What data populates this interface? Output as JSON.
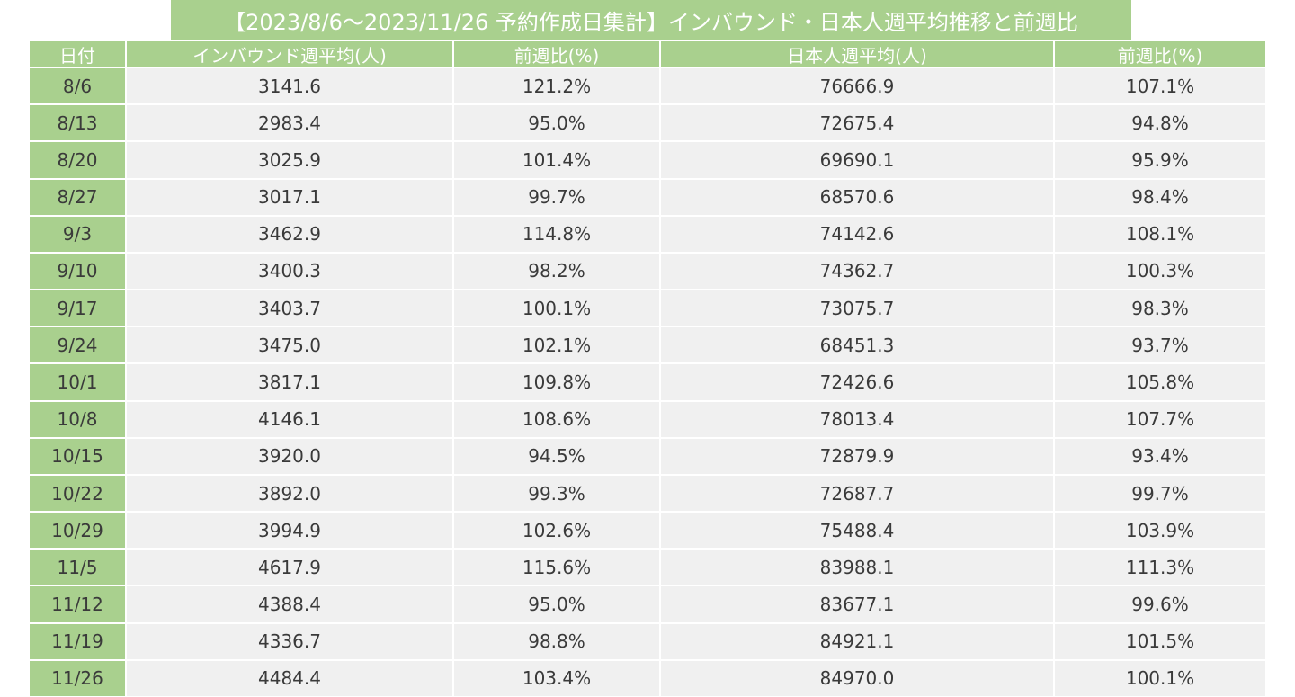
{
  "header": {
    "title": "【2023/8/6～2023/11/26 予約作成日集計】インバウンド・日本人週平均推移と前週比"
  },
  "table": {
    "columns": [
      "日付",
      "インバウンド週平均(人)",
      "前週比(%)",
      "日本人週平均(人)",
      "前週比(%)"
    ],
    "rows": [
      [
        "8/6",
        "3141.6",
        "121.2%",
        "76666.9",
        "107.1%"
      ],
      [
        "8/13",
        "2983.4",
        "95.0%",
        "72675.4",
        "94.8%"
      ],
      [
        "8/20",
        "3025.9",
        "101.4%",
        "69690.1",
        "95.9%"
      ],
      [
        "8/27",
        "3017.1",
        "99.7%",
        "68570.6",
        "98.4%"
      ],
      [
        "9/3",
        "3462.9",
        "114.8%",
        "74142.6",
        "108.1%"
      ],
      [
        "9/10",
        "3400.3",
        "98.2%",
        "74362.7",
        "100.3%"
      ],
      [
        "9/17",
        "3403.7",
        "100.1%",
        "73075.7",
        "98.3%"
      ],
      [
        "9/24",
        "3475.0",
        "102.1%",
        "68451.3",
        "93.7%"
      ],
      [
        "10/1",
        "3817.1",
        "109.8%",
        "72426.6",
        "105.8%"
      ],
      [
        "10/8",
        "4146.1",
        "108.6%",
        "78013.4",
        "107.7%"
      ],
      [
        "10/15",
        "3920.0",
        "94.5%",
        "72879.9",
        "93.4%"
      ],
      [
        "10/22",
        "3892.0",
        "99.3%",
        "72687.7",
        "99.7%"
      ],
      [
        "10/29",
        "3994.9",
        "102.6%",
        "75488.4",
        "103.9%"
      ],
      [
        "11/5",
        "4617.9",
        "115.6%",
        "83988.1",
        "111.3%"
      ],
      [
        "11/12",
        "4388.4",
        "95.0%",
        "83677.1",
        "99.6%"
      ],
      [
        "11/19",
        "4336.7",
        "98.8%",
        "84921.1",
        "101.5%"
      ],
      [
        "11/26",
        "4484.4",
        "103.4%",
        "84970.0",
        "100.1%"
      ]
    ]
  }
}
